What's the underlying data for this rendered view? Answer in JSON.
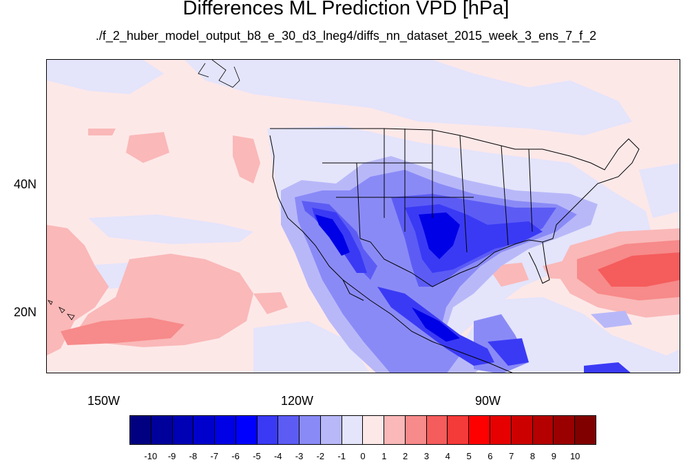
{
  "title": "Differences ML Prediction VPD [hPa]",
  "subtitle": "./f_2_huber_model_output_b8_e_30_d3_lneg4/diffs_nn_dataset_2015_week_3_ens_7_f_2",
  "map": {
    "lon_labels": [
      "150W",
      "120W",
      "90W"
    ],
    "lat_labels": [
      "40N",
      "20N"
    ]
  },
  "colorbar": {
    "labels": [
      "-10",
      "-9",
      "-8",
      "-7",
      "-6",
      "-5",
      "-4",
      "-3",
      "-2",
      "-1",
      "0",
      "1",
      "2",
      "3",
      "4",
      "5",
      "6",
      "7",
      "8",
      "9",
      "10"
    ],
    "colors": [
      "#000080",
      "#00009a",
      "#0000b4",
      "#0000cd",
      "#0000e6",
      "#0000ff",
      "#3a3af5",
      "#5c5cf5",
      "#8a8af7",
      "#b8b8f9",
      "#e4e4fb",
      "#fde8e8",
      "#fab8b8",
      "#f78a8a",
      "#f55c5c",
      "#f53a3a",
      "#ff0000",
      "#e60000",
      "#cd0000",
      "#b40000",
      "#9a0000",
      "#800000"
    ]
  }
}
